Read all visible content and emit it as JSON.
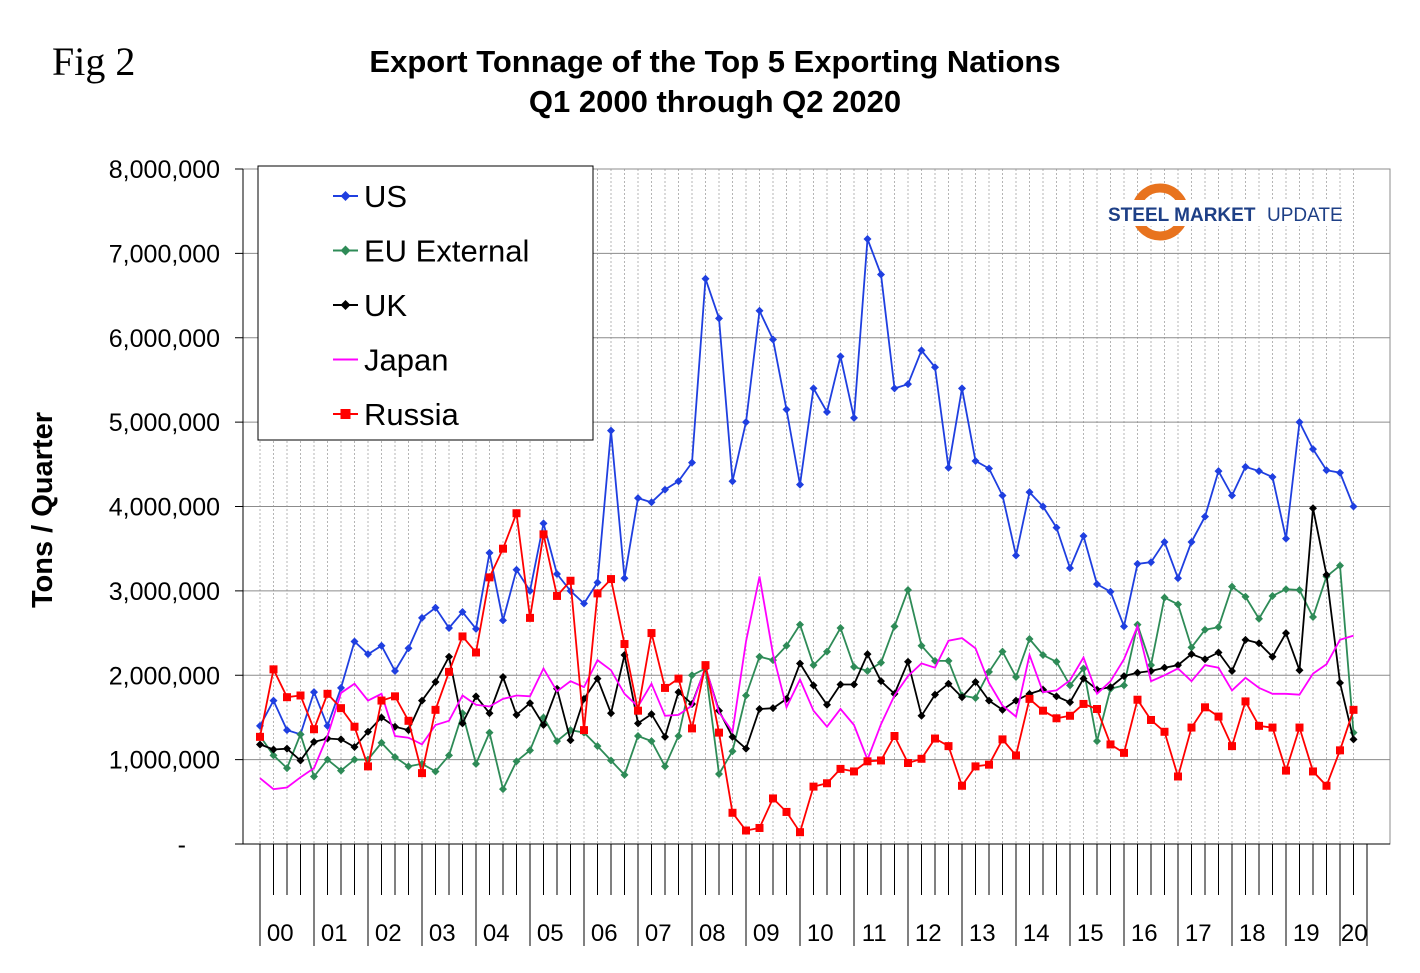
{
  "figure_label": "Fig 2",
  "brand": {
    "name_bold": "STEEL MARKET",
    "name_light": "UPDATE",
    "accent": "#e8731e",
    "color": "#1d3f86"
  },
  "chart_data": {
    "type": "line",
    "title": [
      "Export Tonnage of the Top 5 Exporting Nations",
      "Q1 2000 through Q2 2020"
    ],
    "xlabel": "",
    "ylabel": "Tons / Quarter",
    "ylim": [
      0,
      8000000
    ],
    "yticks": [
      {
        "value": 0,
        "label": "-"
      },
      {
        "value": 1000000,
        "label": "1,000,000"
      },
      {
        "value": 2000000,
        "label": "2,000,000"
      },
      {
        "value": 3000000,
        "label": "3,000,000"
      },
      {
        "value": 4000000,
        "label": "4,000,000"
      },
      {
        "value": 5000000,
        "label": "5,000,000"
      },
      {
        "value": 6000000,
        "label": "6,000,000"
      },
      {
        "value": 7000000,
        "label": "7,000,000"
      },
      {
        "value": 8000000,
        "label": "8,000,000"
      }
    ],
    "years": [
      "00",
      "01",
      "02",
      "03",
      "04",
      "05",
      "06",
      "07",
      "08",
      "09",
      "10",
      "11",
      "12",
      "13",
      "14",
      "15",
      "16",
      "17",
      "18",
      "19",
      "20"
    ],
    "quarters_per_year": 4,
    "legend_position": "top-left",
    "grid": "horizontal major, dotted vertical per quarter",
    "series": [
      {
        "name": "US",
        "color": "#1f3fe0",
        "marker": "diamond",
        "values": [
          1400000,
          1700000,
          1350000,
          1300000,
          1800000,
          1400000,
          1850000,
          2400000,
          2250000,
          2350000,
          2050000,
          2320000,
          2680000,
          2800000,
          2560000,
          2750000,
          2550000,
          3450000,
          2650000,
          3250000,
          3000000,
          3800000,
          3200000,
          3000000,
          2850000,
          3100000,
          4900000,
          3150000,
          4100000,
          4050000,
          4200000,
          4300000,
          4520000,
          6700000,
          6230000,
          4300000,
          5000000,
          6320000,
          5980000,
          5150000,
          4260000,
          5400000,
          5120000,
          5780000,
          5050000,
          7170000,
          6750000,
          5400000,
          5450000,
          5850000,
          5650000,
          4460000,
          5400000,
          4540000,
          4450000,
          4130000,
          3420000,
          4170000,
          4000000,
          3750000,
          3270000,
          3650000,
          3080000,
          2990000,
          2580000,
          3320000,
          3340000,
          3580000,
          3150000,
          3580000,
          3880000,
          4420000,
          4130000,
          4470000,
          4420000,
          4350000,
          3620000,
          5000000,
          4680000,
          4430000,
          4400000,
          4000000
        ]
      },
      {
        "name": "EU External",
        "color": "#2e8b57",
        "marker": "diamond",
        "values": [
          1280000,
          1050000,
          900000,
          1300000,
          800000,
          1000000,
          870000,
          1000000,
          1000000,
          1200000,
          1030000,
          920000,
          950000,
          860000,
          1050000,
          1550000,
          950000,
          1320000,
          650000,
          980000,
          1110000,
          1500000,
          1220000,
          1350000,
          1320000,
          1160000,
          990000,
          820000,
          1280000,
          1220000,
          920000,
          1280000,
          2000000,
          2080000,
          830000,
          1100000,
          1760000,
          2220000,
          2180000,
          2350000,
          2600000,
          2120000,
          2280000,
          2560000,
          2100000,
          2050000,
          2150000,
          2580000,
          3010000,
          2350000,
          2170000,
          2170000,
          1760000,
          1730000,
          2040000,
          2280000,
          1980000,
          2430000,
          2240000,
          2160000,
          1880000,
          2080000,
          1220000,
          1840000,
          1880000,
          2600000,
          2120000,
          2920000,
          2840000,
          2330000,
          2540000,
          2570000,
          3050000,
          2930000,
          2670000,
          2940000,
          3020000,
          3010000,
          2690000,
          3170000,
          3300000,
          1320000
        ]
      },
      {
        "name": "UK",
        "color": "#000000",
        "marker": "diamond",
        "values": [
          1180000,
          1120000,
          1130000,
          990000,
          1210000,
          1250000,
          1240000,
          1150000,
          1330000,
          1500000,
          1390000,
          1350000,
          1700000,
          1920000,
          2220000,
          1430000,
          1750000,
          1550000,
          1980000,
          1530000,
          1670000,
          1410000,
          1840000,
          1230000,
          1720000,
          1960000,
          1550000,
          2240000,
          1430000,
          1540000,
          1270000,
          1800000,
          1660000,
          2090000,
          1580000,
          1270000,
          1130000,
          1600000,
          1610000,
          1720000,
          2140000,
          1880000,
          1650000,
          1890000,
          1890000,
          2250000,
          1930000,
          1780000,
          2160000,
          1520000,
          1770000,
          1900000,
          1740000,
          1920000,
          1700000,
          1590000,
          1700000,
          1780000,
          1830000,
          1750000,
          1680000,
          1960000,
          1830000,
          1860000,
          1990000,
          2030000,
          2050000,
          2090000,
          2120000,
          2250000,
          2190000,
          2270000,
          2050000,
          2420000,
          2380000,
          2220000,
          2500000,
          2060000,
          3980000,
          3190000,
          1910000,
          1240000
        ]
      },
      {
        "name": "Japan",
        "color": "#ff00ff",
        "marker": "none",
        "values": [
          780000,
          650000,
          670000,
          790000,
          900000,
          1280000,
          1790000,
          1900000,
          1700000,
          1780000,
          1280000,
          1260000,
          1180000,
          1410000,
          1460000,
          1760000,
          1650000,
          1630000,
          1720000,
          1760000,
          1750000,
          2080000,
          1810000,
          1930000,
          1860000,
          2180000,
          2060000,
          1780000,
          1630000,
          1900000,
          1520000,
          1530000,
          1640000,
          2100000,
          1560000,
          1330000,
          2400000,
          3170000,
          2250000,
          1620000,
          1950000,
          1580000,
          1390000,
          1600000,
          1410000,
          1000000,
          1420000,
          1760000,
          1990000,
          2140000,
          2090000,
          2410000,
          2440000,
          2320000,
          1910000,
          1640000,
          1510000,
          2240000,
          1800000,
          1820000,
          1940000,
          2210000,
          1780000,
          1930000,
          2190000,
          2580000,
          1930000,
          2000000,
          2080000,
          1930000,
          2120000,
          2090000,
          1820000,
          1970000,
          1850000,
          1780000,
          1780000,
          1770000,
          2020000,
          2130000,
          2420000,
          2470000
        ]
      },
      {
        "name": "Russia",
        "color": "#ff0000",
        "marker": "square",
        "values": [
          1270000,
          2070000,
          1740000,
          1760000,
          1360000,
          1780000,
          1610000,
          1390000,
          920000,
          1700000,
          1750000,
          1460000,
          840000,
          1590000,
          2040000,
          2460000,
          2270000,
          3160000,
          3500000,
          3920000,
          2680000,
          3670000,
          2940000,
          3120000,
          1350000,
          2970000,
          3140000,
          2370000,
          1580000,
          2500000,
          1850000,
          1960000,
          1370000,
          2120000,
          1320000,
          370000,
          160000,
          190000,
          540000,
          380000,
          140000,
          680000,
          720000,
          890000,
          860000,
          980000,
          990000,
          1280000,
          960000,
          1010000,
          1250000,
          1160000,
          690000,
          920000,
          940000,
          1240000,
          1050000,
          1720000,
          1580000,
          1490000,
          1520000,
          1660000,
          1600000,
          1180000,
          1080000,
          1710000,
          1470000,
          1330000,
          800000,
          1380000,
          1620000,
          1510000,
          1160000,
          1690000,
          1400000,
          1380000,
          870000,
          1380000,
          860000,
          690000,
          1110000,
          1590000
        ]
      }
    ]
  }
}
